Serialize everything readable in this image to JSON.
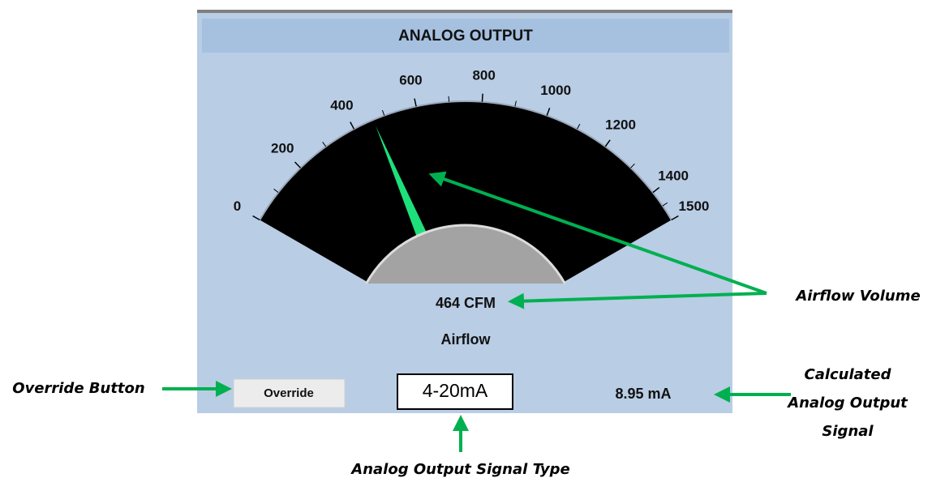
{
  "header": {
    "title": "ANALOG OUTPUT"
  },
  "gauge": {
    "range": [
      0,
      1500
    ],
    "ticks": [
      0,
      200,
      400,
      600,
      800,
      1000,
      1200,
      1400,
      1500
    ],
    "value": 464,
    "value_label": "464 CFM",
    "quantity_label": "Airflow"
  },
  "controls": {
    "override_button": "Override",
    "signal_type": "4-20mA",
    "output_signal": "8.95 mA"
  },
  "annotations": {
    "airflow_volume": "Airflow Volume",
    "override_button": "Override Button",
    "calculated_signal": [
      "Calculated",
      "Analog Output",
      "Signal"
    ],
    "signal_type": "Analog Output Signal Type"
  }
}
